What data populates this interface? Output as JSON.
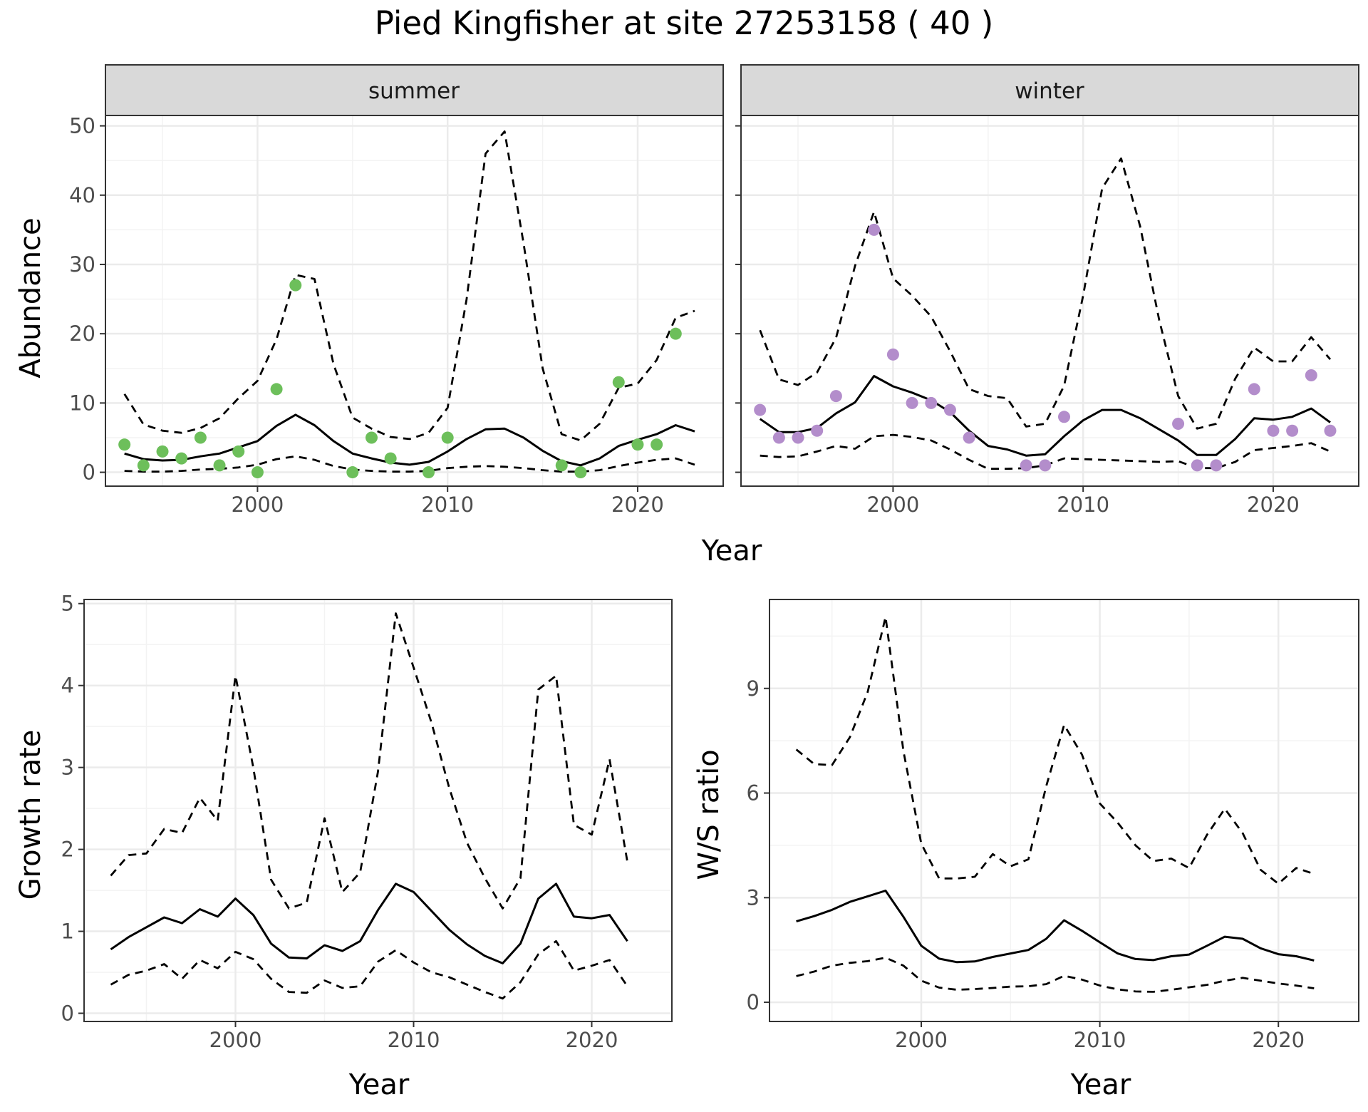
{
  "title": "Pied Kingfisher at site 27253158 ( 40 )",
  "colors": {
    "summer_points": "#6dbf5b",
    "winter_points": "#b38dcb",
    "line": "#000000",
    "grid_major": "#ebebeb",
    "grid_minor": "#f3f3f3",
    "strip_fill": "#d9d9d9",
    "panel_border": "#333333"
  },
  "chart_data": [
    {
      "id": "abundance",
      "type": "line",
      "xlabel": "Year",
      "ylabel": "Abundance",
      "xlim": [
        1992,
        2024.5
      ],
      "ylim": [
        -2,
        51.5
      ],
      "xticks": [
        2000,
        2010,
        2020
      ],
      "yticks": [
        0,
        10,
        20,
        30,
        40,
        50
      ],
      "grid": true,
      "facets": [
        {
          "name": "summer",
          "points": {
            "x": [
              1993,
              1994,
              1995,
              1996,
              1997,
              1998,
              1999,
              2000,
              2001,
              2002,
              2005,
              2006,
              2007,
              2009,
              2010,
              2016,
              2017,
              2019,
              2020,
              2021,
              2022
            ],
            "y": [
              4,
              1,
              3,
              2,
              5,
              1,
              3,
              0,
              12,
              27,
              0,
              5,
              2,
              0,
              5,
              1,
              0,
              13,
              4,
              4,
              20
            ]
          },
          "series": [
            {
              "role": "estimate",
              "x": [
                1993,
                1994,
                1995,
                1996,
                1997,
                1998,
                1999,
                2000,
                2001,
                2002,
                2003,
                2004,
                2005,
                2006,
                2007,
                2008,
                2009,
                2010,
                2011,
                2012,
                2013,
                2014,
                2015,
                2016,
                2017,
                2018,
                2019,
                2020,
                2021,
                2022,
                2023
              ],
              "y": [
                2.7,
                1.9,
                1.7,
                1.8,
                2.3,
                2.7,
                3.6,
                4.5,
                6.7,
                8.3,
                6.8,
                4.5,
                2.7,
                2.0,
                1.4,
                1.1,
                1.5,
                3.0,
                4.8,
                6.2,
                6.3,
                5.0,
                3.1,
                1.6,
                1.0,
                2.0,
                3.8,
                4.7,
                5.5,
                6.8,
                5.9
              ]
            },
            {
              "role": "upper",
              "x": [
                1993,
                1994,
                1995,
                1996,
                1997,
                1998,
                1999,
                2000,
                2001,
                2002,
                2003,
                2004,
                2005,
                2006,
                2007,
                2008,
                2009,
                2010,
                2011,
                2012,
                2013,
                2014,
                2015,
                2016,
                2017,
                2018,
                2019,
                2020,
                2021,
                2022,
                2023
              ],
              "y": [
                11.3,
                6.9,
                6.0,
                5.7,
                6.4,
                7.8,
                10.7,
                13.2,
                19.2,
                28.5,
                27.9,
                15.6,
                7.9,
                6.3,
                5.1,
                4.8,
                5.7,
                9.3,
                25.0,
                46.0,
                49.2,
                33.0,
                15.0,
                5.5,
                4.6,
                7.0,
                12.2,
                12.8,
                16.2,
                22.3,
                23.3
              ]
            },
            {
              "role": "lower",
              "x": [
                1993,
                1994,
                1995,
                1996,
                1997,
                1998,
                1999,
                2000,
                2001,
                2002,
                2003,
                2004,
                2005,
                2006,
                2007,
                2008,
                2009,
                2010,
                2011,
                2012,
                2013,
                2014,
                2015,
                2016,
                2017,
                2018,
                2019,
                2020,
                2021,
                2022,
                2023
              ],
              "y": [
                0.2,
                0.1,
                0.1,
                0.2,
                0.4,
                0.5,
                0.7,
                1.1,
                1.9,
                2.3,
                1.8,
                0.9,
                0.4,
                0.2,
                0.1,
                0.1,
                0.2,
                0.6,
                0.8,
                0.9,
                0.8,
                0.6,
                0.3,
                0.1,
                0.1,
                0.3,
                0.9,
                1.4,
                1.8,
                2.0,
                1.1
              ]
            }
          ]
        },
        {
          "name": "winter",
          "points": {
            "x": [
              1993,
              1994,
              1995,
              1996,
              1997,
              1999,
              2000,
              2001,
              2002,
              2003,
              2004,
              2007,
              2008,
              2009,
              2015,
              2016,
              2017,
              2019,
              2020,
              2021,
              2022,
              2023
            ],
            "y": [
              9,
              5,
              5,
              6,
              11,
              35,
              17,
              10,
              10,
              9,
              5,
              1,
              1,
              8,
              7,
              1,
              1,
              12,
              6,
              6,
              14,
              6
            ]
          },
          "series": [
            {
              "role": "estimate",
              "x": [
                1993,
                1994,
                1995,
                1996,
                1997,
                1998,
                1999,
                2000,
                2001,
                2002,
                2003,
                2004,
                2005,
                2006,
                2007,
                2008,
                2009,
                2010,
                2011,
                2012,
                2013,
                2014,
                2015,
                2016,
                2017,
                2018,
                2019,
                2020,
                2021,
                2022,
                2023
              ],
              "y": [
                7.7,
                5.8,
                5.8,
                6.4,
                8.5,
                10.1,
                13.9,
                12.4,
                11.5,
                10.4,
                8.7,
                6.0,
                3.8,
                3.3,
                2.4,
                2.6,
                5.2,
                7.5,
                9.0,
                9.0,
                7.8,
                6.2,
                4.6,
                2.5,
                2.5,
                4.8,
                7.8,
                7.6,
                8.0,
                9.2,
                7.2
              ]
            },
            {
              "role": "upper",
              "x": [
                1993,
                1994,
                1995,
                1996,
                1997,
                1998,
                1999,
                2000,
                2001,
                2002,
                2003,
                2004,
                2005,
                2006,
                2007,
                2008,
                2009,
                2010,
                2011,
                2012,
                2013,
                2014,
                2015,
                2016,
                2017,
                2018,
                2019,
                2020,
                2021,
                2022,
                2023
              ],
              "y": [
                20.5,
                13.4,
                12.6,
                14.4,
                19.4,
                29.8,
                37.6,
                28.0,
                25.5,
                22.5,
                17.5,
                12.0,
                11.0,
                10.7,
                6.6,
                7.0,
                12.5,
                25.5,
                41.0,
                45.3,
                35.5,
                22.0,
                11.0,
                6.3,
                7.0,
                13.5,
                18.0,
                16.0,
                16.0,
                19.5,
                16.3
              ]
            },
            {
              "role": "lower",
              "x": [
                1993,
                1994,
                1995,
                1996,
                1997,
                1998,
                1999,
                2000,
                2001,
                2002,
                2003,
                2004,
                2005,
                2006,
                2007,
                2008,
                2009,
                2010,
                2011,
                2012,
                2013,
                2014,
                2015,
                2016,
                2017,
                2018,
                2019,
                2020,
                2021,
                2022,
                2023
              ],
              "y": [
                2.4,
                2.2,
                2.3,
                3.0,
                3.8,
                3.4,
                5.2,
                5.4,
                5.1,
                4.6,
                3.3,
                1.8,
                0.5,
                0.5,
                0.6,
                1.0,
                2.0,
                1.9,
                1.8,
                1.7,
                1.6,
                1.5,
                1.6,
                0.6,
                0.6,
                1.5,
                3.2,
                3.5,
                3.8,
                4.2,
                3.0
              ]
            }
          ]
        }
      ]
    },
    {
      "id": "growth",
      "type": "line",
      "xlabel": "Year",
      "ylabel": "Growth rate",
      "xlim": [
        1991.5,
        2024.5
      ],
      "ylim": [
        -0.1,
        5.05
      ],
      "xticks": [
        2000,
        2010,
        2020
      ],
      "yticks": [
        0,
        1,
        2,
        3,
        4,
        5
      ],
      "grid": true,
      "series": [
        {
          "role": "estimate",
          "x": [
            1993,
            1994,
            1995,
            1996,
            1997,
            1998,
            1999,
            2000,
            2001,
            2002,
            2003,
            2004,
            2005,
            2006,
            2007,
            2008,
            2009,
            2010,
            2011,
            2012,
            2013,
            2014,
            2015,
            2016,
            2017,
            2018,
            2019,
            2020,
            2021,
            2022
          ],
          "y": [
            0.78,
            0.93,
            1.05,
            1.17,
            1.1,
            1.27,
            1.18,
            1.4,
            1.2,
            0.85,
            0.68,
            0.67,
            0.83,
            0.76,
            0.88,
            1.26,
            1.58,
            1.48,
            1.25,
            1.02,
            0.84,
            0.7,
            0.61,
            0.85,
            1.4,
            1.58,
            1.18,
            1.16,
            1.2,
            0.88
          ]
        },
        {
          "role": "upper",
          "x": [
            1993,
            1994,
            1995,
            1996,
            1997,
            1998,
            1999,
            2000,
            2001,
            2002,
            2003,
            2004,
            2005,
            2006,
            2007,
            2008,
            2009,
            2010,
            2011,
            2012,
            2013,
            2014,
            2015,
            2016,
            2017,
            2018,
            2019,
            2020,
            2021,
            2022
          ],
          "y": [
            1.68,
            1.93,
            1.95,
            2.25,
            2.2,
            2.63,
            2.35,
            4.12,
            3.0,
            1.63,
            1.28,
            1.35,
            2.38,
            1.48,
            1.72,
            2.95,
            4.88,
            4.22,
            3.55,
            2.75,
            2.08,
            1.65,
            1.28,
            1.65,
            3.95,
            4.12,
            2.3,
            2.18,
            3.1,
            1.85
          ]
        },
        {
          "role": "lower",
          "x": [
            1993,
            1994,
            1995,
            1996,
            1997,
            1998,
            1999,
            2000,
            2001,
            2002,
            2003,
            2004,
            2005,
            2006,
            2007,
            2008,
            2009,
            2010,
            2011,
            2012,
            2013,
            2014,
            2015,
            2016,
            2017,
            2018,
            2019,
            2020,
            2021,
            2022
          ],
          "y": [
            0.35,
            0.47,
            0.52,
            0.6,
            0.42,
            0.65,
            0.55,
            0.75,
            0.66,
            0.42,
            0.26,
            0.25,
            0.4,
            0.31,
            0.33,
            0.63,
            0.77,
            0.62,
            0.5,
            0.44,
            0.35,
            0.26,
            0.18,
            0.38,
            0.72,
            0.88,
            0.52,
            0.58,
            0.65,
            0.33
          ]
        }
      ]
    },
    {
      "id": "ws_ratio",
      "type": "line",
      "xlabel": "Year",
      "ylabel": "W/S ratio",
      "xlim": [
        1991.5,
        2024.5
      ],
      "ylim": [
        -0.55,
        11.55
      ],
      "xticks": [
        2000,
        2010,
        2020
      ],
      "yticks": [
        0,
        3,
        6,
        9
      ],
      "grid": true,
      "series": [
        {
          "role": "estimate",
          "x": [
            1993,
            1994,
            1995,
            1996,
            1997,
            1998,
            1999,
            2000,
            2001,
            2002,
            2003,
            2004,
            2005,
            2006,
            2007,
            2008,
            2009,
            2010,
            2011,
            2012,
            2013,
            2014,
            2015,
            2016,
            2017,
            2018,
            2019,
            2020,
            2021,
            2022
          ],
          "y": [
            2.32,
            2.47,
            2.65,
            2.88,
            3.04,
            3.2,
            2.45,
            1.62,
            1.25,
            1.15,
            1.17,
            1.3,
            1.4,
            1.5,
            1.82,
            2.35,
            2.05,
            1.72,
            1.4,
            1.24,
            1.21,
            1.32,
            1.37,
            1.62,
            1.88,
            1.82,
            1.55,
            1.38,
            1.32,
            1.2
          ]
        },
        {
          "role": "upper",
          "x": [
            1993,
            1994,
            1995,
            1996,
            1997,
            1998,
            1999,
            2000,
            2001,
            2002,
            2003,
            2004,
            2005,
            2006,
            2007,
            2008,
            2009,
            2010,
            2011,
            2012,
            2013,
            2014,
            2015,
            2016,
            2017,
            2018,
            2019,
            2020,
            2021,
            2022
          ],
          "y": [
            7.25,
            6.83,
            6.8,
            7.6,
            8.9,
            11.05,
            7.2,
            4.55,
            3.55,
            3.55,
            3.6,
            4.25,
            3.9,
            4.1,
            6.2,
            7.95,
            7.1,
            5.7,
            5.15,
            4.5,
            4.05,
            4.12,
            3.85,
            4.8,
            5.55,
            4.85,
            3.8,
            3.4,
            3.85,
            3.68
          ]
        },
        {
          "role": "lower",
          "x": [
            1993,
            1994,
            1995,
            1996,
            1997,
            1998,
            1999,
            2000,
            2001,
            2002,
            2003,
            2004,
            2005,
            2006,
            2007,
            2008,
            2009,
            2010,
            2011,
            2012,
            2013,
            2014,
            2015,
            2016,
            2017,
            2018,
            2019,
            2020,
            2021,
            2022
          ],
          "y": [
            0.75,
            0.88,
            1.05,
            1.13,
            1.18,
            1.28,
            1.05,
            0.62,
            0.42,
            0.36,
            0.38,
            0.41,
            0.45,
            0.46,
            0.52,
            0.76,
            0.65,
            0.48,
            0.37,
            0.31,
            0.3,
            0.36,
            0.43,
            0.5,
            0.62,
            0.7,
            0.62,
            0.54,
            0.48,
            0.4
          ]
        }
      ]
    }
  ]
}
